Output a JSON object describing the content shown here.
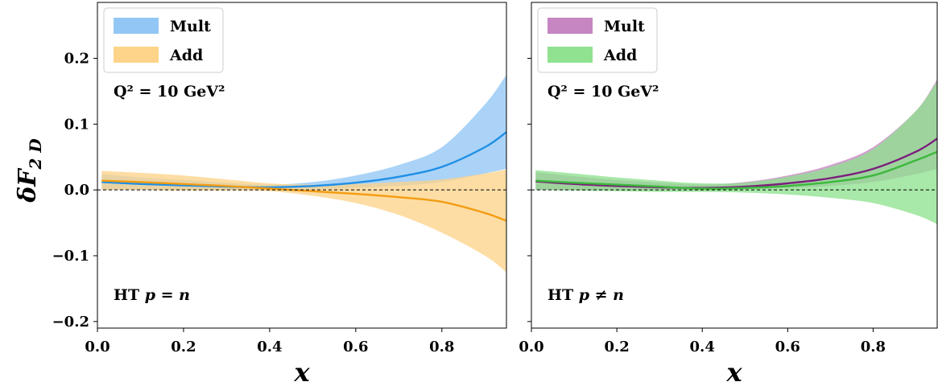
{
  "figure": {
    "ylabel": "δF",
    "ylabel_sub": "2 D"
  },
  "chart_data": [
    {
      "type": "line",
      "panel": "left",
      "xlabel": "x",
      "xlim": [
        0.0,
        0.95
      ],
      "ylim": [
        -0.21,
        0.285
      ],
      "xticks": [
        0.0,
        0.2,
        0.4,
        0.6,
        0.8
      ],
      "xtick_labels": [
        "0.0",
        "0.2",
        "0.4",
        "0.6",
        "0.8"
      ],
      "yticks": [
        -0.2,
        -0.1,
        0.0,
        0.1,
        0.2
      ],
      "ytick_labels": [
        "−0.2",
        "−0.1",
        "0.0",
        "0.1",
        "0.2"
      ],
      "reference_line": 0.0,
      "legend": {
        "position": "top-left"
      },
      "annotations": {
        "q2": "Q² = 10 GeV²",
        "label_prefix": "HT",
        "label_math": "p = n"
      },
      "x": [
        0.01,
        0.1,
        0.2,
        0.3,
        0.4,
        0.5,
        0.6,
        0.7,
        0.8,
        0.9,
        0.95
      ],
      "series": [
        {
          "name": "Mult",
          "color": "#1f8fe6",
          "band_color": "#92c7f5",
          "y": [
            0.012,
            0.009,
            0.007,
            0.005,
            0.004,
            0.006,
            0.011,
            0.02,
            0.035,
            0.065,
            0.088
          ],
          "lower": [
            0.0,
            0.0,
            0.0,
            0.0,
            0.0,
            0.001,
            0.003,
            0.006,
            0.012,
            0.025,
            0.032
          ],
          "upper": [
            0.024,
            0.019,
            0.015,
            0.011,
            0.008,
            0.012,
            0.022,
            0.038,
            0.065,
            0.13,
            0.175
          ]
        },
        {
          "name": "Add",
          "color": "#f39c12",
          "band_color": "#fdd48a",
          "y": [
            0.014,
            0.012,
            0.009,
            0.006,
            0.002,
            -0.002,
            -0.006,
            -0.011,
            -0.018,
            -0.035,
            -0.047
          ],
          "lower": [
            0.0,
            0.0,
            -0.001,
            -0.001,
            -0.002,
            -0.009,
            -0.02,
            -0.038,
            -0.065,
            -0.1,
            -0.125
          ],
          "upper": [
            0.029,
            0.026,
            0.022,
            0.016,
            0.01,
            0.008,
            0.009,
            0.012,
            0.016,
            0.025,
            0.031
          ]
        }
      ]
    },
    {
      "type": "line",
      "panel": "right",
      "xlabel": "x",
      "xlim": [
        0.0,
        0.95
      ],
      "ylim": [
        -0.21,
        0.285
      ],
      "xticks": [
        0.0,
        0.2,
        0.4,
        0.6,
        0.8
      ],
      "xtick_labels": [
        "0.0",
        "0.2",
        "0.4",
        "0.6",
        "0.8"
      ],
      "yticks": [
        -0.2,
        -0.1,
        0.0,
        0.1,
        0.2
      ],
      "reference_line": 0.0,
      "legend": {
        "position": "top-left"
      },
      "annotations": {
        "q2": "Q² = 10 GeV²",
        "label_prefix": "HT",
        "label_math": "p ≠ n"
      },
      "x": [
        0.01,
        0.1,
        0.2,
        0.3,
        0.4,
        0.5,
        0.6,
        0.7,
        0.8,
        0.9,
        0.95
      ],
      "series": [
        {
          "name": "Mult",
          "color": "#7b1f7c",
          "band_color": "#c586c1",
          "y": [
            0.013,
            0.009,
            0.006,
            0.004,
            0.003,
            0.005,
            0.01,
            0.018,
            0.032,
            0.058,
            0.078
          ],
          "lower": [
            0.0,
            0.0,
            0.0,
            0.0,
            0.0,
            0.001,
            0.003,
            0.006,
            0.012,
            0.024,
            0.032
          ],
          "upper": [
            0.027,
            0.021,
            0.015,
            0.011,
            0.008,
            0.012,
            0.022,
            0.038,
            0.065,
            0.12,
            0.168
          ]
        },
        {
          "name": "Add",
          "color": "#3cb83c",
          "band_color": "#90e290",
          "y": [
            0.014,
            0.011,
            0.008,
            0.005,
            0.002,
            0.003,
            0.006,
            0.012,
            0.022,
            0.045,
            0.058
          ],
          "lower": [
            0.0,
            -0.001,
            -0.002,
            -0.003,
            -0.003,
            -0.004,
            -0.007,
            -0.012,
            -0.02,
            -0.038,
            -0.052
          ],
          "upper": [
            0.03,
            0.025,
            0.019,
            0.014,
            0.01,
            0.011,
            0.02,
            0.035,
            0.062,
            0.12,
            0.165
          ]
        }
      ]
    }
  ]
}
